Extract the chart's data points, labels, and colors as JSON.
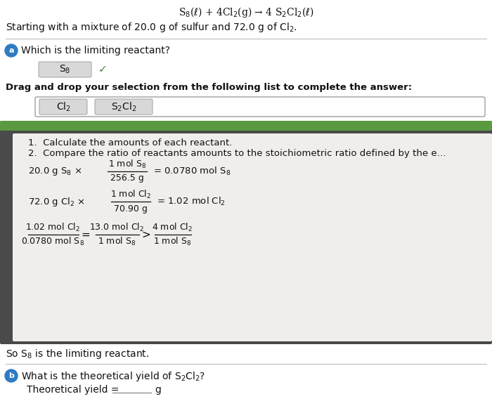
{
  "bg_color": "#e8e8e8",
  "white": "#ffffff",
  "panel_bg": "#4a4a4a",
  "green_color": "#5a9940",
  "light_panel": "#f0eeeb",
  "title_eq": "S$_8$($\\ell$) + 4Cl$_2$(g) → 4 S$_2$Cl$_2$($\\ell$)",
  "subtitle": "Starting with a mixture of 20.0 g of sulfur and 72.0 g of Cl$_2$.",
  "q_a_text": "Which is the limiting reactant?",
  "answer_box_text": "S$_8$",
  "checkmark": "✓",
  "drag_drop_bold": "Drag and drop your selection from the following list to complete the answer:",
  "drag_opt1": "Cl$_2$",
  "drag_opt2": "S$_2$Cl$_2$",
  "step1": "1.  Calculate the amounts of each reactant.",
  "step2": "2.  Compare the ratio of reactants amounts to the stoichiometric ratio defined by the e…",
  "calc1_left": "20.0 g S$_8$ ×",
  "calc1_num": "1 mol S$_8$",
  "calc1_den": "256.5 g",
  "calc1_right": "= 0.0780 mol S$_8$",
  "calc2_left": "72.0 g Cl$_2$ ×",
  "calc2_num": "1 mol Cl$_2$",
  "calc2_den": "70.90 g",
  "calc2_right": "= 1.02 mol Cl$_2$",
  "r1n": "1.02 mol Cl$_2$",
  "r1d": "0.0780 mol S$_8$",
  "r2n": "13.0 mol Cl$_2$",
  "r2d": "1 mol S$_8$",
  "r3n": "4 mol Cl$_2$",
  "r3d": "1 mol S$_8$",
  "conclusion": "So S$_8$ is the limiting reactant.",
  "q_b_text": "What is the theoretical yield of S$_2$Cl$_2$?",
  "theoretical_yield_text": "Theoretical yield =",
  "unit_g": "g",
  "fig_w": 7.0,
  "fig_h": 5.88,
  "dpi": 100
}
